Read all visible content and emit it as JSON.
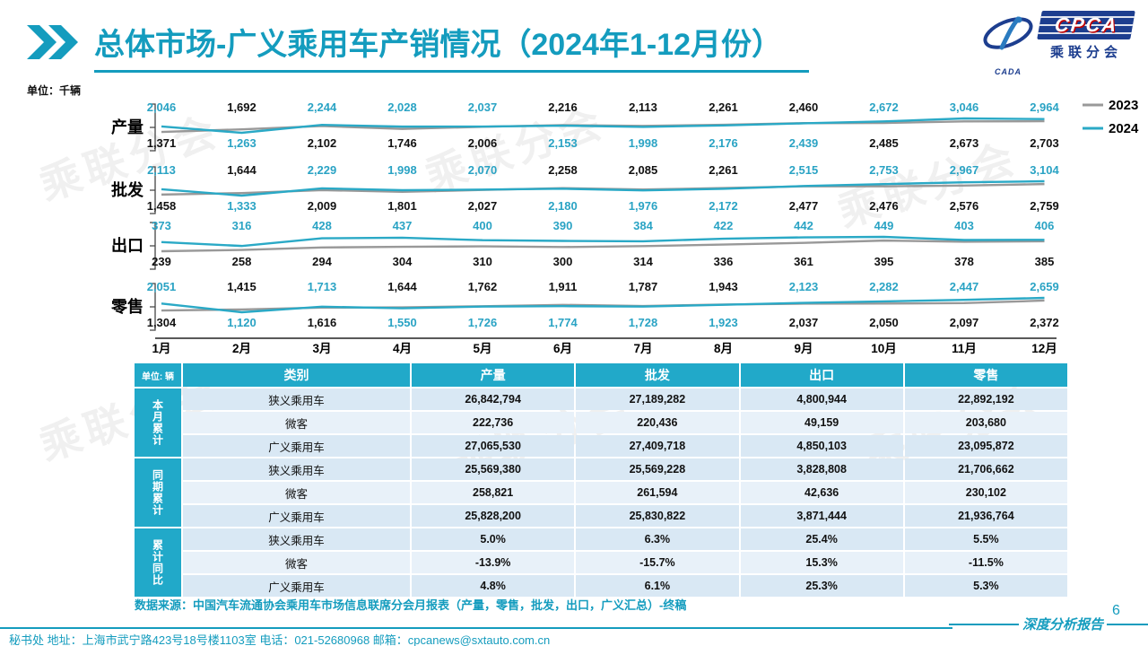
{
  "header": {
    "title": "总体市场-广义乘用车产销情况（2024年1-12月份）",
    "logo": {
      "acronym": "CPCA",
      "subtitle": "乘联分会",
      "left_mark": "CADA"
    }
  },
  "theme": {
    "accent": "#149CBE",
    "color_2023": "#999999",
    "color_2024": "#2AA9C6",
    "table_header_bg": "#21A9C9",
    "row_bg_a": "#D9E8F4",
    "row_bg_b": "#E8F1F9",
    "watermark_text": "乘联分会"
  },
  "chart_data": {
    "type": "line",
    "unit_label": "单位：千辆",
    "categories": [
      "1月",
      "2月",
      "3月",
      "4月",
      "5月",
      "6月",
      "7月",
      "8月",
      "9月",
      "10月",
      "11月",
      "12月"
    ],
    "legend": [
      "2023",
      "2024"
    ],
    "legend_position": "right",
    "rows": [
      {
        "label": "产量",
        "series": [
          {
            "name": "2023",
            "values": [
              1371,
              1692,
              2102,
              1746,
              2006,
              2216,
              2113,
              2261,
              2460,
              2485,
              2673,
              2703
            ]
          },
          {
            "name": "2024",
            "values": [
              2046,
              1263,
              2244,
              2028,
              2037,
              2153,
              1998,
              2176,
              2439,
              2672,
              3046,
              2964
            ]
          }
        ]
      },
      {
        "label": "批发",
        "series": [
          {
            "name": "2023",
            "values": [
              1458,
              1644,
              2009,
              1801,
              2027,
              2258,
              2085,
              2261,
              2477,
              2476,
              2576,
              2759
            ]
          },
          {
            "name": "2024",
            "values": [
              2113,
              1333,
              2229,
              1998,
              2070,
              2180,
              1976,
              2172,
              2515,
              2753,
              2967,
              3104
            ]
          }
        ]
      },
      {
        "label": "出口",
        "series": [
          {
            "name": "2023",
            "values": [
              239,
              258,
              294,
              304,
              310,
              300,
              314,
              336,
              361,
              395,
              378,
              385
            ]
          },
          {
            "name": "2024",
            "values": [
              373,
              316,
              428,
              437,
              400,
              390,
              384,
              422,
              442,
              449,
              403,
              406
            ]
          }
        ]
      },
      {
        "label": "零售",
        "series": [
          {
            "name": "2023",
            "values": [
              1304,
              1415,
              1616,
              1644,
              1762,
              1911,
              1787,
              1943,
              2037,
              2050,
              2097,
              2372
            ]
          },
          {
            "name": "2024",
            "values": [
              2051,
              1120,
              1713,
              1550,
              1726,
              1774,
              1728,
              1923,
              2123,
              2282,
              2447,
              2659
            ]
          }
        ]
      }
    ]
  },
  "table": {
    "unit_header": "单位: 辆",
    "columns": [
      "类别",
      "产量",
      "批发",
      "出口",
      "零售"
    ],
    "groups": [
      {
        "label": "本月累计",
        "rows": [
          {
            "category": "狭义乘用车",
            "values": [
              "26,842,794",
              "27,189,282",
              "4,800,944",
              "22,892,192"
            ]
          },
          {
            "category": "微客",
            "values": [
              "222,736",
              "220,436",
              "49,159",
              "203,680"
            ]
          },
          {
            "category": "广义乘用车",
            "values": [
              "27,065,530",
              "27,409,718",
              "4,850,103",
              "23,095,872"
            ]
          }
        ]
      },
      {
        "label": "同期累计",
        "rows": [
          {
            "category": "狭义乘用车",
            "values": [
              "25,569,380",
              "25,569,228",
              "3,828,808",
              "21,706,662"
            ]
          },
          {
            "category": "微客",
            "values": [
              "258,821",
              "261,594",
              "42,636",
              "230,102"
            ]
          },
          {
            "category": "广义乘用车",
            "values": [
              "25,828,200",
              "25,830,822",
              "3,871,444",
              "21,936,764"
            ]
          }
        ]
      },
      {
        "label": "累计同比",
        "rows": [
          {
            "category": "狭义乘用车",
            "values": [
              "5.0%",
              "6.3%",
              "25.4%",
              "5.5%"
            ]
          },
          {
            "category": "微客",
            "values": [
              "-13.9%",
              "-15.7%",
              "15.3%",
              "-11.5%"
            ]
          },
          {
            "category": "广义乘用车",
            "values": [
              "4.8%",
              "6.1%",
              "25.3%",
              "5.3%"
            ]
          }
        ]
      }
    ]
  },
  "footer": {
    "source": "数据来源：中国汽车流通协会乘用车市场信息联席分会月报表（产量，零售，批发，出口，广义汇总）-终稿",
    "page_number": "6",
    "report_type": "深度分析报告",
    "contact": "秘书处  地址：上海市武宁路423号18号楼1103室 电话：021-52680968   邮箱：cpcanews@sxtauto.com.cn"
  }
}
